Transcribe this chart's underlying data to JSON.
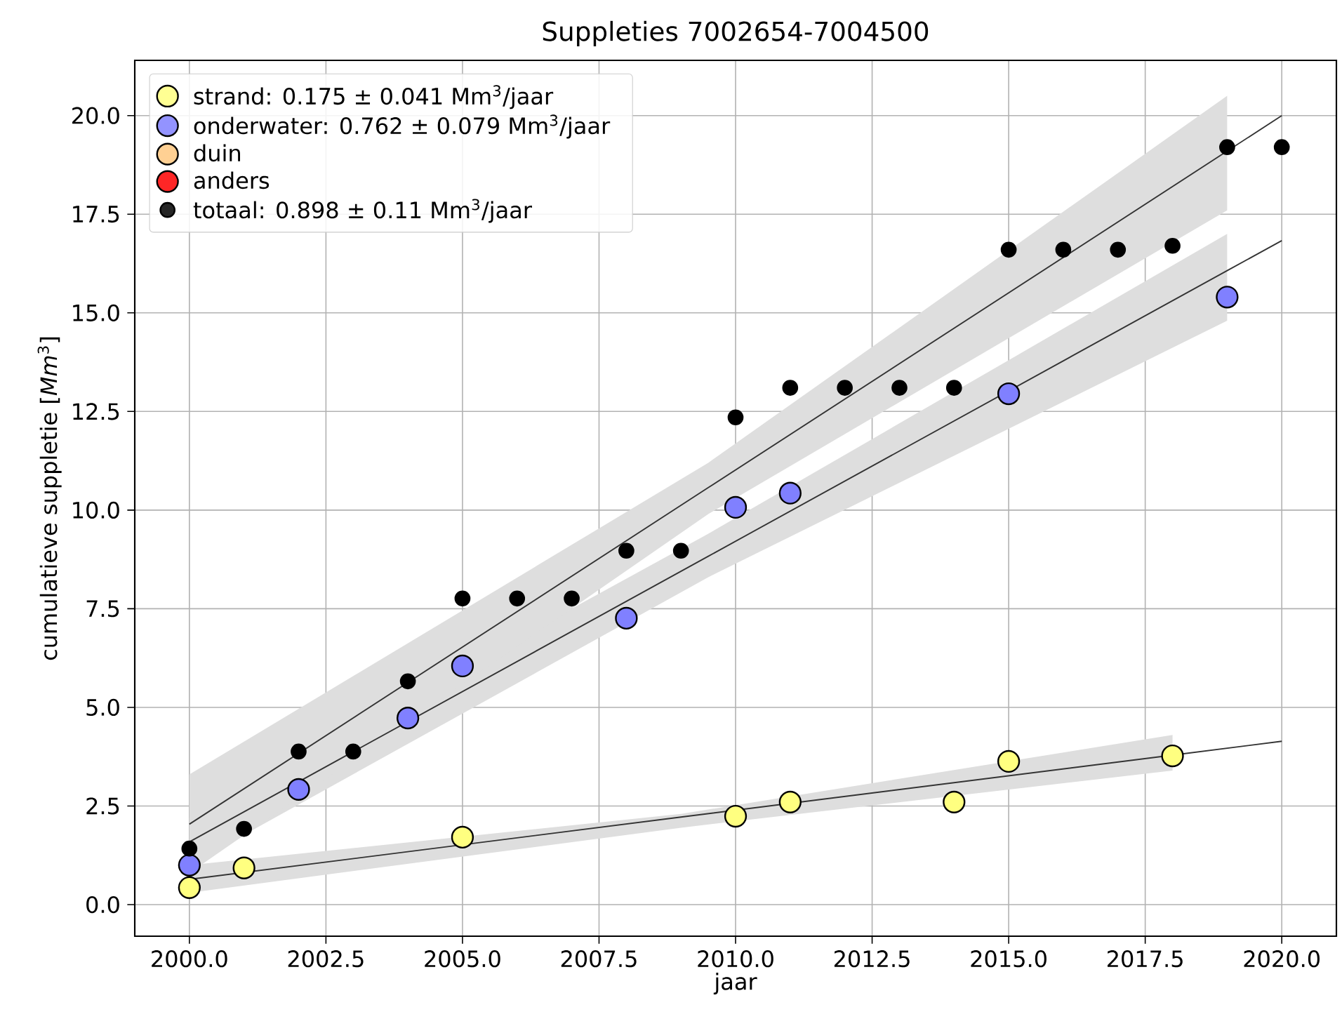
{
  "chart_data": {
    "type": "scatter",
    "title": "Suppleties 7002654-7004500",
    "xlabel": "jaar",
    "ylabel": "cumulatieve suppletie [*Mm*$^{3}$]",
    "xlim": [
      1999,
      2021
    ],
    "ylim": [
      -0.8,
      21.4
    ],
    "xticks": [
      {
        "value": 2000,
        "label": "2000.0"
      },
      {
        "value": 2002.5,
        "label": "2002.5"
      },
      {
        "value": 2005,
        "label": "2005.0"
      },
      {
        "value": 2007.5,
        "label": "2007.5"
      },
      {
        "value": 2010,
        "label": "2010.0"
      },
      {
        "value": 2012.5,
        "label": "2012.5"
      },
      {
        "value": 2015,
        "label": "2015.0"
      },
      {
        "value": 2017.5,
        "label": "2017.5"
      },
      {
        "value": 2020,
        "label": "2020.0"
      }
    ],
    "yticks": [
      {
        "value": 0,
        "label": "0.0"
      },
      {
        "value": 2.5,
        "label": "2.5"
      },
      {
        "value": 5,
        "label": "5.0"
      },
      {
        "value": 7.5,
        "label": "7.5"
      },
      {
        "value": 10,
        "label": "10.0"
      },
      {
        "value": 12.5,
        "label": "12.5"
      },
      {
        "value": 15,
        "label": "15.0"
      },
      {
        "value": 17.5,
        "label": "17.5"
      },
      {
        "value": 20,
        "label": "20.0"
      }
    ],
    "grid": true,
    "legend": "top left",
    "marker": "circle",
    "series": [
      {
        "name": "strand:  0.175 ± 0.041 Mm$^{3}$/jaar",
        "color": "#ffff80",
        "x": [
          2000,
          2001,
          2005,
          2010,
          2011,
          2014,
          2015,
          2018
        ],
        "values": [
          0.43,
          0.93,
          1.71,
          2.24,
          2.6,
          2.6,
          3.63,
          3.77
        ]
      },
      {
        "name": "onderwater:  0.762 ± 0.079 Mm$^{3}$/jaar",
        "color": "#8080ff",
        "x": [
          2000,
          2002,
          2004,
          2005,
          2008,
          2010,
          2011,
          2015,
          2019
        ],
        "values": [
          1.0,
          2.92,
          4.73,
          6.05,
          7.26,
          10.07,
          10.43,
          12.95,
          15.4
        ]
      },
      {
        "name": "duin",
        "color": "#ffc880"
      },
      {
        "name": "anders",
        "color": "#ff0000"
      },
      {
        "name": "totaal:  0.898 ± 0.11 Mm$^{3}$/jaar",
        "color": "#000000",
        "x": [
          2000,
          2001,
          2002,
          2003,
          2004,
          2005,
          2006,
          2007,
          2008,
          2009,
          2010,
          2011,
          2012,
          2013,
          2014,
          2015,
          2016,
          2017,
          2018,
          2019,
          2020
        ],
        "values": [
          1.42,
          1.92,
          3.88,
          3.88,
          5.66,
          7.76,
          7.76,
          7.76,
          8.97,
          8.97,
          12.35,
          13.1,
          13.1,
          13.1,
          13.1,
          16.6,
          16.6,
          16.6,
          16.7,
          19.2,
          19.2
        ]
      },
      {
        "type": "line",
        "marker": "none",
        "color": "#333333",
        "x": [
          2000,
          2009,
          2018,
          2020
        ],
        "values": [
          0.64,
          2.22,
          3.79,
          4.14
        ],
        "lower": [
          0.3,
          1.95,
          3.4,
          null
        ],
        "upper": [
          1.0,
          2.3,
          4.3,
          null
        ]
      },
      {
        "type": "line",
        "marker": "none",
        "color": "#333333",
        "x": [
          2000,
          2009.5,
          2019,
          2020
        ],
        "values": [
          1.59,
          8.83,
          16.07,
          16.83
        ],
        "lower": [
          1.0,
          8.3,
          14.8,
          null
        ],
        "upper": [
          2.2,
          9.4,
          17.0,
          null
        ]
      },
      {
        "type": "line",
        "marker": "none",
        "color": "#333333",
        "x": [
          2000,
          2009.5,
          2019,
          2020
        ],
        "values": [
          2.04,
          10.57,
          19.1,
          20.0
        ],
        "lower": [
          0.8,
          9.9,
          17.6,
          null
        ],
        "upper": [
          3.3,
          11.2,
          20.5,
          null
        ]
      }
    ]
  }
}
